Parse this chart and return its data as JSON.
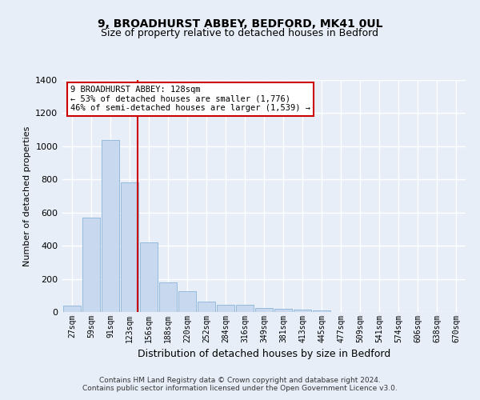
{
  "title1": "9, BROADHURST ABBEY, BEDFORD, MK41 0UL",
  "title2": "Size of property relative to detached houses in Bedford",
  "xlabel": "Distribution of detached houses by size in Bedford",
  "ylabel": "Number of detached properties",
  "categories": [
    "27sqm",
    "59sqm",
    "91sqm",
    "123sqm",
    "156sqm",
    "188sqm",
    "220sqm",
    "252sqm",
    "284sqm",
    "316sqm",
    "349sqm",
    "381sqm",
    "413sqm",
    "445sqm",
    "477sqm",
    "509sqm",
    "541sqm",
    "574sqm",
    "606sqm",
    "638sqm",
    "670sqm"
  ],
  "values": [
    40,
    570,
    1040,
    780,
    420,
    180,
    125,
    62,
    45,
    42,
    22,
    20,
    15,
    8,
    0,
    0,
    0,
    0,
    0,
    0,
    0
  ],
  "bar_color": "#c8d9ef",
  "bar_edge_color": "#8ab4d8",
  "vline_color": "#cc0000",
  "annotation_text": "9 BROADHURST ABBEY: 128sqm\n← 53% of detached houses are smaller (1,776)\n46% of semi-detached houses are larger (1,539) →",
  "annotation_box_color": "#ffffff",
  "annotation_box_edge": "#cc0000",
  "ylim": [
    0,
    1400
  ],
  "yticks": [
    0,
    200,
    400,
    600,
    800,
    1000,
    1200,
    1400
  ],
  "footer": "Contains HM Land Registry data © Crown copyright and database right 2024.\nContains public sector information licensed under the Open Government Licence v3.0.",
  "bg_color": "#e8eef8",
  "plot_bg_color": "#e8eef8",
  "grid_color": "#ffffff"
}
